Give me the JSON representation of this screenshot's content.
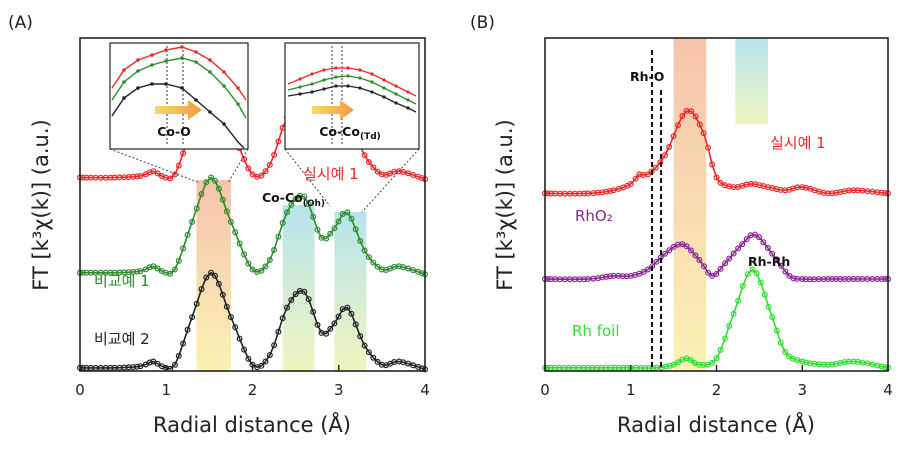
{
  "colors": {
    "red": "#ee2828",
    "green": "#2e8b2e",
    "black": "#222222",
    "purple": "#8a2596",
    "lime": "#33dd33",
    "band_warm": "#f3c9a6",
    "band_cool": "#b5e3e6"
  },
  "chart_data": [
    {
      "type": "line",
      "panel_label": "(A)",
      "xlabel": "Radial distance (Å)",
      "ylabel": "FT [k³χ(k)] (a.u.)",
      "xlim": [
        0,
        4
      ],
      "x_ticks": [
        "0",
        "1",
        "2",
        "3",
        "4"
      ],
      "grid": false,
      "series": [
        {
          "name": "실시예 1",
          "color": "#ee2828",
          "offset": 0.6,
          "x": [
            0,
            0.4,
            0.7,
            0.85,
            0.95,
            1.1,
            1.3,
            1.52,
            1.75,
            2.0,
            2.2,
            2.4,
            2.6,
            2.8,
            2.95,
            3.1,
            3.3,
            3.5,
            3.7,
            4.0
          ],
          "y": [
            0.01,
            0.01,
            0.015,
            0.03,
            0.015,
            0.02,
            0.17,
            0.31,
            0.17,
            0.02,
            0.05,
            0.2,
            0.25,
            0.12,
            0.15,
            0.2,
            0.08,
            0.02,
            0.03,
            0.005
          ]
        },
        {
          "name": "비교예 1",
          "color": "#2e8b2e",
          "offset": 0.3,
          "x": [
            0,
            0.4,
            0.7,
            0.85,
            0.95,
            1.1,
            1.3,
            1.52,
            1.75,
            2.0,
            2.2,
            2.4,
            2.6,
            2.8,
            2.95,
            3.1,
            3.3,
            3.5,
            3.7,
            4.0
          ],
          "y": [
            0.01,
            0.01,
            0.015,
            0.03,
            0.015,
            0.02,
            0.17,
            0.31,
            0.17,
            0.02,
            0.05,
            0.2,
            0.25,
            0.12,
            0.15,
            0.2,
            0.08,
            0.02,
            0.03,
            0.005
          ]
        },
        {
          "name": "비교예 2",
          "color": "#222222",
          "offset": 0.0,
          "x": [
            0,
            0.4,
            0.7,
            0.85,
            0.95,
            1.1,
            1.3,
            1.52,
            1.75,
            2.0,
            2.2,
            2.4,
            2.6,
            2.8,
            2.95,
            3.1,
            3.3,
            3.5,
            3.7,
            4.0
          ],
          "y": [
            0.01,
            0.01,
            0.015,
            0.03,
            0.015,
            0.02,
            0.17,
            0.31,
            0.17,
            0.02,
            0.05,
            0.2,
            0.25,
            0.12,
            0.15,
            0.2,
            0.08,
            0.02,
            0.03,
            0.005
          ]
        }
      ],
      "bands": [
        {
          "x": [
            1.35,
            1.75
          ],
          "color": "warm"
        },
        {
          "x": [
            2.35,
            2.72
          ],
          "color": "cool"
        },
        {
          "x": [
            2.95,
            3.32
          ],
          "color": "cool"
        }
      ],
      "annotations": [
        {
          "text": "Co-O",
          "sub": ""
        },
        {
          "text": "Co-Co",
          "sub": "(Oh)"
        },
        {
          "text": "Co-Co",
          "sub": "(Td)"
        }
      ]
    },
    {
      "type": "line",
      "panel_label": "(B)",
      "xlabel": "Radial distance (Å)",
      "ylabel": "FT [k³χ(k)] (a.u.)",
      "xlim": [
        0,
        4
      ],
      "x_ticks": [
        "0",
        "1",
        "2",
        "3",
        "4"
      ],
      "grid": false,
      "series": [
        {
          "name": "실시예 1",
          "color": "#ee2828",
          "offset": 0.55,
          "x": [
            0,
            0.5,
            0.8,
            1.0,
            1.1,
            1.2,
            1.4,
            1.65,
            1.85,
            2.0,
            2.2,
            2.4,
            2.6,
            2.8,
            3.0,
            3.3,
            3.6,
            4.0
          ],
          "y": [
            0.01,
            0.01,
            0.02,
            0.04,
            0.07,
            0.07,
            0.13,
            0.27,
            0.2,
            0.06,
            0.03,
            0.04,
            0.03,
            0.02,
            0.03,
            0.01,
            0.02,
            0.01
          ]
        },
        {
          "name": "RhO₂",
          "color": "#8a2596",
          "offset": 0.28,
          "x": [
            0,
            0.5,
            0.8,
            1.0,
            1.2,
            1.4,
            1.6,
            1.8,
            1.95,
            2.1,
            2.3,
            2.45,
            2.65,
            2.85,
            3.0,
            3.3,
            3.6,
            4.0
          ],
          "y": [
            0.01,
            0.01,
            0.02,
            0.02,
            0.04,
            0.09,
            0.12,
            0.07,
            0.02,
            0.06,
            0.12,
            0.15,
            0.09,
            0.02,
            0.01,
            0.01,
            0.01,
            0.01
          ]
        },
        {
          "name": "Rh foil",
          "color": "#33dd33",
          "offset": 0.0,
          "x": [
            0,
            0.5,
            1.0,
            1.3,
            1.5,
            1.65,
            1.8,
            2.0,
            2.2,
            2.42,
            2.65,
            2.8,
            3.0,
            3.3,
            3.6,
            4.0
          ],
          "y": [
            0.01,
            0.01,
            0.01,
            0.01,
            0.02,
            0.04,
            0.02,
            0.04,
            0.18,
            0.32,
            0.17,
            0.06,
            0.03,
            0.02,
            0.03,
            0.01
          ]
        }
      ],
      "bands": [
        {
          "x": [
            1.5,
            1.88
          ],
          "color": "warm"
        },
        {
          "x": [
            2.22,
            2.6
          ],
          "color": "cool"
        }
      ],
      "annotations": [
        {
          "text": "Rh-O"
        },
        {
          "text": "Rh-Rh"
        }
      ]
    }
  ],
  "inset_left": {
    "label": "Co-O"
  },
  "inset_right": {
    "label": "Co-Co",
    "sub": "(Td)"
  }
}
